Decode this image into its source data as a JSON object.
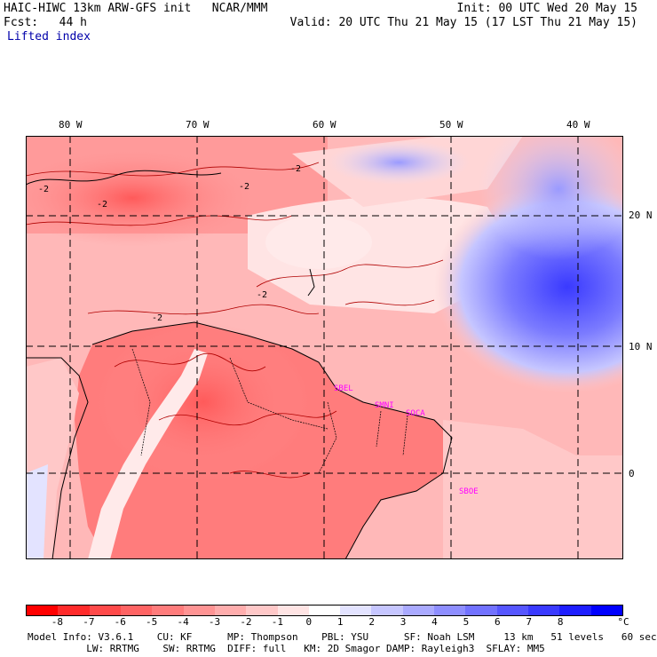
{
  "header": {
    "line1_left": "HAIC-HIWC 13km ARW-GFS init   NCAR/MMM",
    "line1_right": "Init: 00 UTC Wed 20 May 15",
    "line2_left": "Fcst:   44 h",
    "line2_right": "Valid: 20 UTC Thu 21 May 15 (17 LST Thu 21 May 15)",
    "field_name": "Lifted index"
  },
  "axes": {
    "lon_labels": [
      "80 W",
      "70 W",
      "60 W",
      "50 W",
      "40 W"
    ],
    "lat_labels": [
      "20 N",
      "10 N",
      "0"
    ]
  },
  "stations": [
    "SBEL",
    "SMNI",
    "SOCA",
    "SBOE"
  ],
  "contour_labels": [
    "-2",
    "-2",
    "-2",
    "-2",
    "-2",
    "-2"
  ],
  "colorbar": {
    "ticks": [
      "-8",
      "-7",
      "-6",
      "-5",
      "-4",
      "-3",
      "-2",
      "-1",
      "0",
      "1",
      "2",
      "3",
      "4",
      "5",
      "6",
      "7",
      "8"
    ],
    "unit": "°C",
    "colors": [
      "#ff0000",
      "#ff2b2b",
      "#ff4a4a",
      "#ff6464",
      "#ff7c7c",
      "#ff9494",
      "#ffadad",
      "#ffc8c8",
      "#ffe4e4",
      "#ffffff",
      "#e3e3ff",
      "#c6c6ff",
      "#aaaaff",
      "#8e8eff",
      "#7272ff",
      "#5656ff",
      "#3a3aff",
      "#1e1eff",
      "#0000ff"
    ]
  },
  "footer": {
    "line1": "Model Info: V3.6.1    CU: KF      MP: Thompson    PBL: YSU      SF: Noah LSM     13 km   51 levels   60 sec",
    "line2": "          LW: RRTMG    SW: RRTMG  DIFF: full   KM: 2D Smagor DAMP: Rayleigh3  SFLAY: MM5"
  }
}
